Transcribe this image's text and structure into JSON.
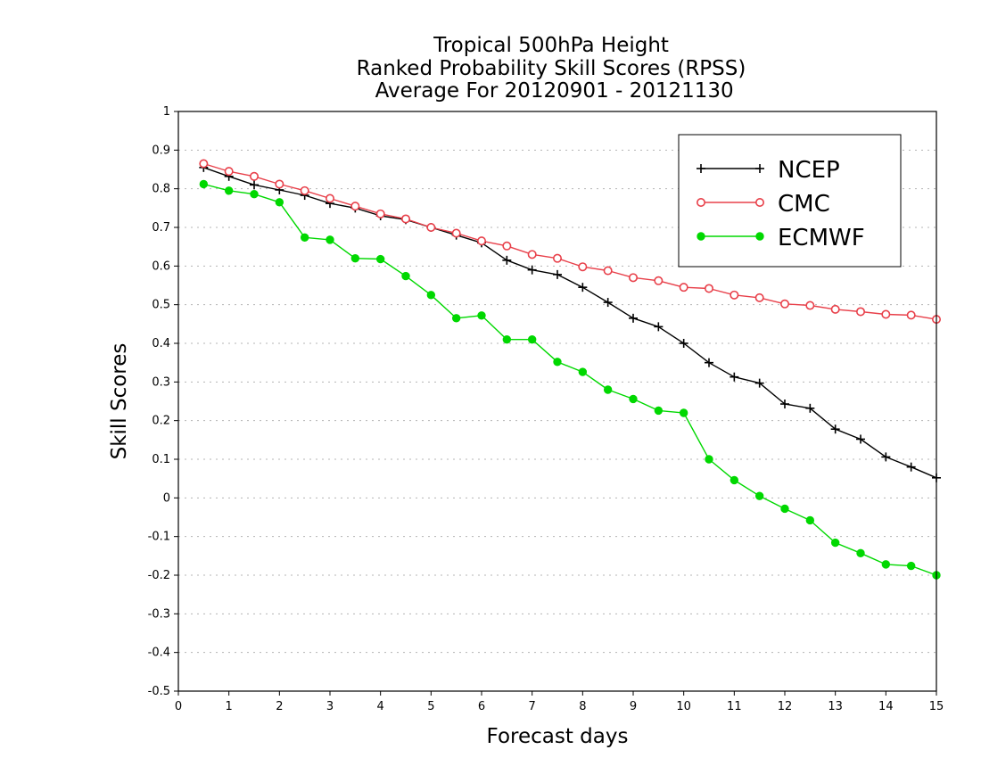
{
  "chart_data": {
    "type": "line",
    "title": [
      "Tropical 500hPa Height",
      "Ranked Probability Skill Scores (RPSS)",
      " Average For 20120901 - 20121130"
    ],
    "xlabel": "Forecast days",
    "ylabel": "Skill Scores",
    "xlim": [
      0,
      15
    ],
    "ylim": [
      -0.5,
      1
    ],
    "xticks": [
      "0",
      "1",
      "2",
      "3",
      "4",
      "5",
      "6",
      "7",
      "8",
      "9",
      "10",
      "11",
      "12",
      "13",
      "14",
      "15"
    ],
    "yticks": [
      "1",
      "0.9",
      "0.8",
      "0.7",
      "0.6",
      "0.5",
      "0.4",
      "0.3",
      "0.2",
      "0.1",
      "0",
      "-0.1",
      "-0.2",
      "-0.3",
      "-0.4",
      "-0.5"
    ],
    "grid": "dotted horizontal",
    "legend_position": "top-right",
    "x": [
      0.5,
      1,
      1.5,
      2,
      2.5,
      3,
      3.5,
      4,
      4.5,
      5,
      5.5,
      6,
      6.5,
      7,
      7.5,
      8,
      8.5,
      9,
      9.5,
      10,
      10.5,
      11,
      11.5,
      12,
      12.5,
      13,
      13.5,
      14,
      14.5,
      15
    ],
    "series": [
      {
        "name": "NCEP",
        "color": "#000000",
        "marker": "plus",
        "values": [
          0.855,
          0.832,
          0.81,
          0.797,
          0.783,
          0.762,
          0.75,
          0.73,
          0.72,
          0.7,
          0.68,
          0.66,
          0.615,
          0.59,
          0.578,
          0.545,
          0.506,
          0.465,
          0.443,
          0.4,
          0.35,
          0.313,
          0.297,
          0.243,
          0.232,
          0.178,
          0.152,
          0.106,
          0.08,
          0.052
        ]
      },
      {
        "name": "CMC",
        "color": "#e8404a",
        "marker": "open-circle",
        "values": [
          0.865,
          0.845,
          0.832,
          0.812,
          0.795,
          0.775,
          0.755,
          0.735,
          0.722,
          0.7,
          0.685,
          0.665,
          0.652,
          0.63,
          0.62,
          0.598,
          0.588,
          0.57,
          0.562,
          0.545,
          0.542,
          0.525,
          0.518,
          0.502,
          0.498,
          0.488,
          0.482,
          0.475,
          0.473,
          0.462
        ]
      },
      {
        "name": "ECMWF",
        "color": "#00d800",
        "marker": "filled-circle",
        "values": [
          0.812,
          0.795,
          0.786,
          0.765,
          0.674,
          0.668,
          0.62,
          0.618,
          0.574,
          0.525,
          0.465,
          0.472,
          0.41,
          0.41,
          0.352,
          0.326,
          0.28,
          0.256,
          0.226,
          0.22,
          0.1,
          0.046,
          0.005,
          -0.028,
          -0.058,
          -0.116,
          -0.143,
          -0.172,
          -0.176,
          -0.2
        ]
      }
    ]
  }
}
